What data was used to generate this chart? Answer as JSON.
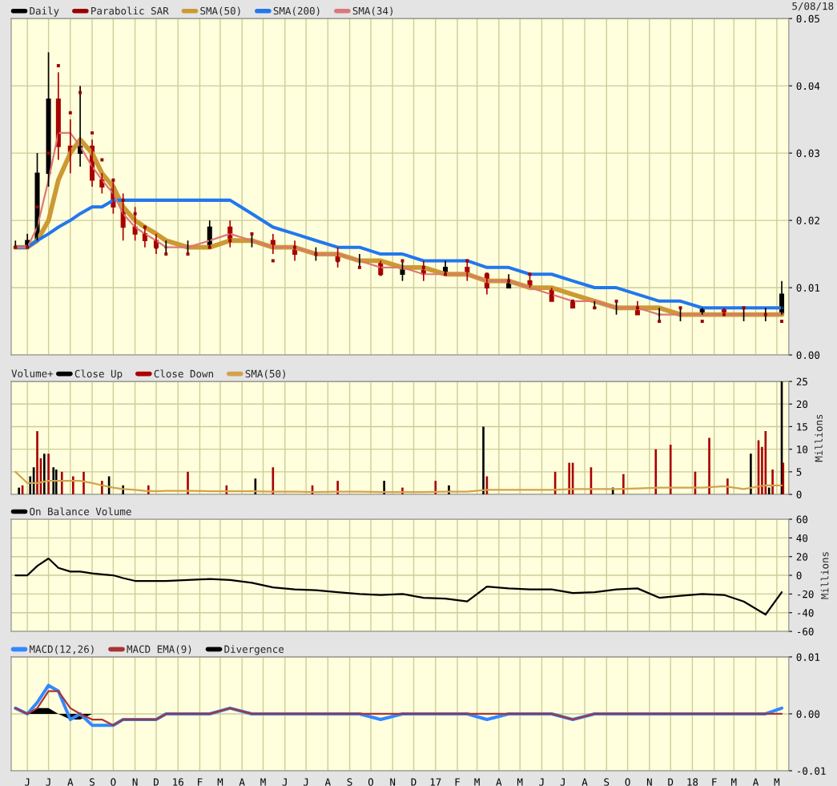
{
  "chart_data": [
    {
      "type": "candlestick",
      "x": [
        "2015-05-15",
        "2015-06-01",
        "2015-06-15",
        "2015-07-01",
        "2015-07-15",
        "2015-08-01",
        "2015-08-15",
        "2015-09-01",
        "2015-09-15",
        "2015-10-01",
        "2015-10-15",
        "2015-11-01",
        "2015-11-15",
        "2015-12-01",
        "2015-12-15",
        "2016-01-15",
        "2016-02-15",
        "2016-03-15",
        "2016-04-15",
        "2016-05-15",
        "2016-06-15",
        "2016-07-15",
        "2016-08-15",
        "2016-09-15",
        "2016-10-15",
        "2016-11-15",
        "2016-12-15",
        "2017-01-15",
        "2017-02-15",
        "2017-03-15",
        "2017-04-15",
        "2017-05-15",
        "2017-06-15",
        "2017-07-15",
        "2017-08-15",
        "2017-09-15",
        "2017-10-15",
        "2017-11-15",
        "2017-12-15",
        "2018-01-15",
        "2018-02-15",
        "2018-03-15",
        "2018-04-15",
        "2018-05-08"
      ],
      "series": [
        {
          "name": "Daily",
          "color": "#000000",
          "colors": [
            "#000000",
            "#000000",
            "#000000",
            "#000000",
            "#aa0000",
            "#aa0000",
            "#000000",
            "#aa0000",
            "#aa0000",
            "#aa0000",
            "#aa0000",
            "#aa0000",
            "#aa0000",
            "#aa0000",
            "#000000",
            "#000000",
            "#000000",
            "#aa0000",
            "#000000",
            "#aa0000",
            "#aa0000",
            "#000000",
            "#aa0000",
            "#000000",
            "#aa0000",
            "#000000",
            "#aa0000",
            "#000000",
            "#aa0000",
            "#aa0000",
            "#000000",
            "#aa0000",
            "#aa0000",
            "#aa0000",
            "#000000",
            "#000000",
            "#aa0000",
            "#000000",
            "#000000",
            "#000000",
            "#aa0000",
            "#000000",
            "#000000",
            "#000000"
          ],
          "ohlc": [
            [
              0.016,
              0.017,
              0.016,
              0.016
            ],
            [
              0.016,
              0.018,
              0.016,
              0.017
            ],
            [
              0.017,
              0.03,
              0.017,
              0.027
            ],
            [
              0.027,
              0.045,
              0.025,
              0.038
            ],
            [
              0.038,
              0.042,
              0.029,
              0.031
            ],
            [
              0.031,
              0.035,
              0.027,
              0.03
            ],
            [
              0.03,
              0.04,
              0.028,
              0.031
            ],
            [
              0.031,
              0.032,
              0.025,
              0.026
            ],
            [
              0.026,
              0.027,
              0.024,
              0.025
            ],
            [
              0.025,
              0.026,
              0.021,
              0.022
            ],
            [
              0.022,
              0.024,
              0.017,
              0.019
            ],
            [
              0.019,
              0.022,
              0.017,
              0.018
            ],
            [
              0.018,
              0.019,
              0.016,
              0.017
            ],
            [
              0.017,
              0.018,
              0.015,
              0.016
            ],
            [
              0.016,
              0.017,
              0.015,
              0.016
            ],
            [
              0.016,
              0.017,
              0.015,
              0.016
            ],
            [
              0.016,
              0.02,
              0.016,
              0.019
            ],
            [
              0.019,
              0.02,
              0.016,
              0.017
            ],
            [
              0.017,
              0.018,
              0.016,
              0.017
            ],
            [
              0.017,
              0.018,
              0.015,
              0.016
            ],
            [
              0.016,
              0.017,
              0.014,
              0.015
            ],
            [
              0.015,
              0.016,
              0.014,
              0.015
            ],
            [
              0.015,
              0.016,
              0.013,
              0.014
            ],
            [
              0.014,
              0.015,
              0.013,
              0.014
            ],
            [
              0.014,
              0.014,
              0.012,
              0.012
            ],
            [
              0.012,
              0.014,
              0.011,
              0.013
            ],
            [
              0.013,
              0.014,
              0.011,
              0.012
            ],
            [
              0.012,
              0.014,
              0.012,
              0.013
            ],
            [
              0.013,
              0.014,
              0.011,
              0.012
            ],
            [
              0.012,
              0.012,
              0.009,
              0.01
            ],
            [
              0.01,
              0.012,
              0.01,
              0.011
            ],
            [
              0.011,
              0.012,
              0.01,
              0.01
            ],
            [
              0.01,
              0.01,
              0.008,
              0.008
            ],
            [
              0.008,
              0.008,
              0.007,
              0.007
            ],
            [
              0.007,
              0.008,
              0.007,
              0.007
            ],
            [
              0.007,
              0.008,
              0.006,
              0.007
            ],
            [
              0.007,
              0.008,
              0.006,
              0.006
            ],
            [
              0.006,
              0.007,
              0.005,
              0.006
            ],
            [
              0.006,
              0.007,
              0.005,
              0.006
            ],
            [
              0.006,
              0.007,
              0.006,
              0.007
            ],
            [
              0.007,
              0.007,
              0.006,
              0.006
            ],
            [
              0.006,
              0.007,
              0.005,
              0.006
            ],
            [
              0.006,
              0.007,
              0.005,
              0.006
            ],
            [
              0.006,
              0.011,
              0.006,
              0.009
            ]
          ]
        },
        {
          "name": "Parabolic SAR",
          "type": "scatter",
          "marker": "square",
          "color": "#990000",
          "values": [
            0.016,
            0.016,
            0.022,
            0.03,
            0.043,
            0.036,
            0.039,
            0.033,
            0.029,
            0.026,
            0.023,
            0.021,
            0.019,
            0.016,
            0.015,
            0.015,
            0.016,
            0.017,
            0.018,
            0.014,
            0.016,
            0.015,
            0.014,
            0.013,
            0.012,
            0.014,
            0.013,
            0.012,
            0.014,
            0.012,
            0.011,
            0.012,
            0.009,
            0.008,
            0.007,
            0.008,
            0.007,
            0.005,
            0.007,
            0.005,
            0.006,
            0.007,
            0.006,
            0.005
          ]
        },
        {
          "name": "SMA(50)",
          "type": "line",
          "color": "#cc9933",
          "values": [
            0.016,
            0.016,
            0.017,
            0.02,
            0.026,
            0.03,
            0.032,
            0.03,
            0.027,
            0.025,
            0.022,
            0.02,
            0.019,
            0.018,
            0.017,
            0.016,
            0.016,
            0.017,
            0.017,
            0.016,
            0.016,
            0.015,
            0.015,
            0.014,
            0.014,
            0.013,
            0.013,
            0.012,
            0.012,
            0.011,
            0.011,
            0.01,
            0.01,
            0.009,
            0.008,
            0.007,
            0.007,
            0.007,
            0.006,
            0.006,
            0.006,
            0.006,
            0.006,
            0.006
          ]
        },
        {
          "name": "SMA(200)",
          "type": "line",
          "color": "#2277ee",
          "values": [
            0.016,
            0.016,
            0.017,
            0.018,
            0.019,
            0.02,
            0.021,
            0.022,
            0.022,
            0.023,
            0.023,
            0.023,
            0.023,
            0.023,
            0.023,
            0.023,
            0.023,
            0.023,
            0.021,
            0.019,
            0.018,
            0.017,
            0.016,
            0.016,
            0.015,
            0.015,
            0.014,
            0.014,
            0.014,
            0.013,
            0.013,
            0.012,
            0.012,
            0.011,
            0.01,
            0.01,
            0.009,
            0.008,
            0.008,
            0.007,
            0.007,
            0.007,
            0.007,
            0.007
          ]
        },
        {
          "name": "SMA(34)",
          "type": "line",
          "color": "#dd7777",
          "values": [
            0.016,
            0.016,
            0.019,
            0.026,
            0.033,
            0.033,
            0.031,
            0.028,
            0.026,
            0.024,
            0.021,
            0.019,
            0.018,
            0.017,
            0.016,
            0.016,
            0.017,
            0.018,
            0.017,
            0.016,
            0.016,
            0.015,
            0.015,
            0.014,
            0.013,
            0.013,
            0.012,
            0.012,
            0.012,
            0.011,
            0.011,
            0.01,
            0.009,
            0.008,
            0.008,
            0.007,
            0.007,
            0.006,
            0.006,
            0.006,
            0.006,
            0.006,
            0.006,
            0.006
          ]
        }
      ],
      "xlim": [
        "2015-05-09",
        "2018-05-18"
      ],
      "xticks": [
        {
          "value": "2015-06-01",
          "label": null
        },
        {
          "value": "2015-07-01",
          "label": null
        },
        {
          "value": "2015-08-01",
          "label": null
        },
        {
          "value": "2015-09-01",
          "label": null
        },
        {
          "value": "2015-10-01",
          "label": null
        },
        {
          "value": "2015-11-01",
          "label": null
        },
        {
          "value": "2015-12-01",
          "label": null
        },
        {
          "value": "2016-01-01",
          "label": null
        },
        {
          "value": "2016-02-01",
          "label": null
        },
        {
          "value": "2016-03-01",
          "label": null
        },
        {
          "value": "2016-04-01",
          "label": null
        },
        {
          "value": "2016-05-01",
          "label": null
        },
        {
          "value": "2016-06-01",
          "label": null
        },
        {
          "value": "2016-07-01",
          "label": null
        },
        {
          "value": "2016-08-01",
          "label": null
        },
        {
          "value": "2016-09-01",
          "label": null
        },
        {
          "value": "2016-10-01",
          "label": null
        },
        {
          "value": "2016-11-01",
          "label": null
        },
        {
          "value": "2016-12-01",
          "label": null
        },
        {
          "value": "2017-01-01",
          "label": null
        },
        {
          "value": "2017-02-01",
          "label": null
        },
        {
          "value": "2017-03-01",
          "label": null
        },
        {
          "value": "2017-04-01",
          "label": null
        },
        {
          "value": "2017-05-01",
          "label": null
        },
        {
          "value": "2017-06-01",
          "label": null
        },
        {
          "value": "2017-07-01",
          "label": null
        },
        {
          "value": "2017-08-01",
          "label": null
        },
        {
          "value": "2017-09-01",
          "label": null
        },
        {
          "value": "2017-10-01",
          "label": null
        },
        {
          "value": "2017-11-01",
          "label": null
        },
        {
          "value": "2017-12-01",
          "label": null
        },
        {
          "value": "2018-01-01",
          "label": null
        },
        {
          "value": "2018-02-01",
          "label": null
        },
        {
          "value": "2018-03-01",
          "label": null
        },
        {
          "value": "2018-04-01",
          "label": null
        },
        {
          "value": "2018-05-01",
          "label": null
        }
      ],
      "ylim": [
        0,
        0.05
      ],
      "yticks": [
        {
          "value": 0,
          "label": "0.00"
        },
        {
          "value": 0.01,
          "label": "0.01"
        },
        {
          "value": 0.02,
          "label": "0.02"
        },
        {
          "value": 0.03,
          "label": "0.03"
        },
        {
          "value": 0.04,
          "label": "0.04"
        },
        {
          "value": 0.05,
          "label": "0.05"
        }
      ],
      "annotations": [
        "5/08/18"
      ],
      "grid": true,
      "legend": "top left",
      "tick_labels": "y"
    },
    {
      "type": "bar",
      "title": "Volume+",
      "ylabel": "Millions",
      "x": [
        "2015-05-15",
        "2015-06-01",
        "2015-06-15",
        "2015-07-01",
        "2015-07-15",
        "2015-08-01",
        "2015-08-15",
        "2015-09-01",
        "2015-09-15",
        "2015-10-01",
        "2015-10-15",
        "2015-11-01",
        "2015-11-15",
        "2015-12-01",
        "2015-12-15",
        "2016-01-15",
        "2016-02-15",
        "2016-03-15",
        "2016-04-15",
        "2016-05-15",
        "2016-06-15",
        "2016-07-15",
        "2016-08-15",
        "2016-09-15",
        "2016-10-15",
        "2016-11-15",
        "2016-12-15",
        "2017-01-15",
        "2017-02-15",
        "2017-03-15",
        "2017-04-15",
        "2017-05-15",
        "2017-06-15",
        "2017-07-15",
        "2017-08-15",
        "2017-09-15",
        "2017-10-15",
        "2017-11-15",
        "2017-12-15",
        "2018-01-15",
        "2018-02-15",
        "2018-03-15",
        "2018-04-15",
        "2018-05-08"
      ],
      "series": [
        {
          "name": "Close Up",
          "color": "#000000",
          "x": [
            "2015-05-20",
            "2015-06-05",
            "2015-06-10",
            "2015-06-25",
            "2015-07-08",
            "2015-07-12",
            "2015-09-25",
            "2015-10-15",
            "2016-04-20",
            "2016-10-20",
            "2017-01-20",
            "2017-03-10",
            "2017-09-10",
            "2018-03-25",
            "2018-04-20",
            "2018-05-08"
          ],
          "values": [
            1.5,
            4,
            6,
            9,
            6,
            5.5,
            4,
            2,
            3.5,
            3,
            2,
            15,
            1.5,
            9,
            1.5,
            25
          ]
        },
        {
          "name": "Close Down",
          "color": "#aa0000",
          "x": [
            "2015-05-25",
            "2015-06-15",
            "2015-06-20",
            "2015-07-01",
            "2015-07-20",
            "2015-08-05",
            "2015-08-20",
            "2015-09-15",
            "2015-11-20",
            "2016-01-15",
            "2016-03-10",
            "2016-05-15",
            "2016-07-10",
            "2016-08-15",
            "2016-11-15",
            "2017-01-01",
            "2017-03-15",
            "2017-06-20",
            "2017-07-10",
            "2017-07-15",
            "2017-08-10",
            "2017-09-25",
            "2017-11-10",
            "2017-12-01",
            "2018-01-05",
            "2018-01-25",
            "2018-02-20",
            "2018-04-05",
            "2018-04-10",
            "2018-04-15",
            "2018-04-25",
            "2018-05-10"
          ],
          "values": [
            2,
            14,
            8,
            9,
            5,
            4,
            5,
            3,
            2,
            5,
            2,
            6,
            2,
            3,
            1.5,
            3,
            4,
            5,
            7,
            7,
            6,
            4.5,
            10,
            11,
            5,
            12.5,
            3.5,
            12,
            10.5,
            14,
            5.5,
            7
          ]
        },
        {
          "name": "SMA(50)",
          "type": "line",
          "color": "#d4a24c",
          "values": [
            5,
            2.5,
            2.5,
            3,
            3,
            3,
            3,
            2.5,
            2,
            1.5,
            1.2,
            1,
            0.8,
            0.7,
            0.8,
            0.8,
            0.7,
            0.7,
            0.7,
            0.6,
            0.6,
            0.5,
            0.6,
            0.6,
            0.5,
            0.5,
            0.5,
            0.6,
            0.6,
            1,
            1,
            1,
            1,
            1.2,
            1.2,
            1.2,
            1.3,
            1.5,
            1.5,
            1.5,
            1.8,
            1.2,
            2,
            2
          ]
        }
      ],
      "xlim": [
        "2015-05-09",
        "2018-05-18"
      ],
      "xticks": [
        {
          "value": "2015-06-01",
          "label": null
        },
        {
          "value": "2015-07-01",
          "label": null
        },
        {
          "value": "2015-08-01",
          "label": null
        },
        {
          "value": "2015-09-01",
          "label": null
        },
        {
          "value": "2015-10-01",
          "label": null
        },
        {
          "value": "2015-11-01",
          "label": null
        },
        {
          "value": "2015-12-01",
          "label": null
        },
        {
          "value": "2016-01-01",
          "label": null
        },
        {
          "value": "2016-02-01",
          "label": null
        },
        {
          "value": "2016-03-01",
          "label": null
        },
        {
          "value": "2016-04-01",
          "label": null
        },
        {
          "value": "2016-05-01",
          "label": null
        },
        {
          "value": "2016-06-01",
          "label": null
        },
        {
          "value": "2016-07-01",
          "label": null
        },
        {
          "value": "2016-08-01",
          "label": null
        },
        {
          "value": "2016-09-01",
          "label": null
        },
        {
          "value": "2016-10-01",
          "label": null
        },
        {
          "value": "2016-11-01",
          "label": null
        },
        {
          "value": "2016-12-01",
          "label": null
        },
        {
          "value": "2017-01-01",
          "label": null
        },
        {
          "value": "2017-02-01",
          "label": null
        },
        {
          "value": "2017-03-01",
          "label": null
        },
        {
          "value": "2017-04-01",
          "label": null
        },
        {
          "value": "2017-05-01",
          "label": null
        },
        {
          "value": "2017-06-01",
          "label": null
        },
        {
          "value": "2017-07-01",
          "label": null
        },
        {
          "value": "2017-08-01",
          "label": null
        },
        {
          "value": "2017-09-01",
          "label": null
        },
        {
          "value": "2017-10-01",
          "label": null
        },
        {
          "value": "2017-11-01",
          "label": null
        },
        {
          "value": "2017-12-01",
          "label": null
        },
        {
          "value": "2018-01-01",
          "label": null
        },
        {
          "value": "2018-02-01",
          "label": null
        },
        {
          "value": "2018-03-01",
          "label": null
        },
        {
          "value": "2018-04-01",
          "label": null
        },
        {
          "value": "2018-05-01",
          "label": null
        }
      ],
      "ylim": [
        0,
        25
      ],
      "yticks": [
        0,
        5,
        10,
        15,
        20,
        25
      ],
      "grid": true,
      "legend": "top left",
      "tick_labels": "y"
    },
    {
      "type": "line",
      "ylabel": "Millions",
      "x": [
        "2015-05-15",
        "2015-06-01",
        "2015-06-15",
        "2015-07-01",
        "2015-07-15",
        "2015-08-01",
        "2015-08-15",
        "2015-09-01",
        "2015-09-15",
        "2015-10-01",
        "2015-10-15",
        "2015-11-01",
        "2015-11-15",
        "2015-12-01",
        "2015-12-15",
        "2016-01-15",
        "2016-02-15",
        "2016-03-15",
        "2016-04-15",
        "2016-05-15",
        "2016-06-15",
        "2016-07-15",
        "2016-08-15",
        "2016-09-15",
        "2016-10-15",
        "2016-11-15",
        "2016-12-15",
        "2017-01-15",
        "2017-02-15",
        "2017-03-15",
        "2017-04-15",
        "2017-05-15",
        "2017-06-15",
        "2017-07-15",
        "2017-08-15",
        "2017-09-15",
        "2017-10-15",
        "2017-11-15",
        "2017-12-15",
        "2018-01-15",
        "2018-02-15",
        "2018-03-15",
        "2018-04-15",
        "2018-05-08"
      ],
      "series": [
        {
          "name": "On Balance Volume",
          "color": "#000000",
          "values": [
            0,
            0,
            10,
            18,
            8,
            4,
            4,
            2,
            1,
            0,
            -3,
            -6,
            -6,
            -6,
            -6,
            -5,
            -4,
            -5,
            -8,
            -13,
            -15,
            -16,
            -18,
            -20,
            -21,
            -20,
            -24,
            -25,
            -28,
            -12,
            -14,
            -15,
            -15,
            -19,
            -18,
            -15,
            -14,
            -24,
            -22,
            -20,
            -21,
            -28,
            -42,
            -18
          ]
        }
      ],
      "xlim": [
        "2015-05-09",
        "2018-05-18"
      ],
      "xticks": [
        {
          "value": "2015-06-01",
          "label": null
        },
        {
          "value": "2015-07-01",
          "label": null
        },
        {
          "value": "2015-08-01",
          "label": null
        },
        {
          "value": "2015-09-01",
          "label": null
        },
        {
          "value": "2015-10-01",
          "label": null
        },
        {
          "value": "2015-11-01",
          "label": null
        },
        {
          "value": "2015-12-01",
          "label": null
        },
        {
          "value": "2016-01-01",
          "label": null
        },
        {
          "value": "2016-02-01",
          "label": null
        },
        {
          "value": "2016-03-01",
          "label": null
        },
        {
          "value": "2016-04-01",
          "label": null
        },
        {
          "value": "2016-05-01",
          "label": null
        },
        {
          "value": "2016-06-01",
          "label": null
        },
        {
          "value": "2016-07-01",
          "label": null
        },
        {
          "value": "2016-08-01",
          "label": null
        },
        {
          "value": "2016-09-01",
          "label": null
        },
        {
          "value": "2016-10-01",
          "label": null
        },
        {
          "value": "2016-11-01",
          "label": null
        },
        {
          "value": "2016-12-01",
          "label": null
        },
        {
          "value": "2017-01-01",
          "label": null
        },
        {
          "value": "2017-02-01",
          "label": null
        },
        {
          "value": "2017-03-01",
          "label": null
        },
        {
          "value": "2017-04-01",
          "label": null
        },
        {
          "value": "2017-05-01",
          "label": null
        },
        {
          "value": "2017-06-01",
          "label": null
        },
        {
          "value": "2017-07-01",
          "label": null
        },
        {
          "value": "2017-08-01",
          "label": null
        },
        {
          "value": "2017-09-01",
          "label": null
        },
        {
          "value": "2017-10-01",
          "label": null
        },
        {
          "value": "2017-11-01",
          "label": null
        },
        {
          "value": "2017-12-01",
          "label": null
        },
        {
          "value": "2018-01-01",
          "label": null
        },
        {
          "value": "2018-02-01",
          "label": null
        },
        {
          "value": "2018-03-01",
          "label": null
        },
        {
          "value": "2018-04-01",
          "label": null
        },
        {
          "value": "2018-05-01",
          "label": null
        }
      ],
      "ylim": [
        -60,
        60
      ],
      "yticks": [
        -60,
        -40,
        -20,
        0,
        20,
        40,
        60
      ],
      "grid": true,
      "legend": "top left",
      "tick_labels": "y"
    },
    {
      "type": "line",
      "x": [
        "2015-05-15",
        "2015-06-01",
        "2015-06-15",
        "2015-07-01",
        "2015-07-15",
        "2015-08-01",
        "2015-08-15",
        "2015-09-01",
        "2015-09-15",
        "2015-10-01",
        "2015-10-15",
        "2015-11-01",
        "2015-11-15",
        "2015-12-01",
        "2015-12-15",
        "2016-01-15",
        "2016-02-15",
        "2016-03-15",
        "2016-04-15",
        "2016-05-15",
        "2016-06-15",
        "2016-07-15",
        "2016-08-15",
        "2016-09-15",
        "2016-10-15",
        "2016-11-15",
        "2016-12-15",
        "2017-01-15",
        "2017-02-15",
        "2017-03-15",
        "2017-04-15",
        "2017-05-15",
        "2017-06-15",
        "2017-07-15",
        "2017-08-15",
        "2017-09-15",
        "2017-10-15",
        "2017-11-15",
        "2017-12-15",
        "2018-01-15",
        "2018-02-15",
        "2018-03-15",
        "2018-04-15",
        "2018-05-08"
      ],
      "series": [
        {
          "name": "MACD(12,26)",
          "color": "#3388ff",
          "values": [
            0.001,
            0.0,
            0.002,
            0.005,
            0.004,
            -0.001,
            0.0,
            -0.002,
            -0.002,
            -0.002,
            -0.001,
            -0.001,
            -0.001,
            -0.001,
            0.0,
            0.0,
            0.0,
            0.001,
            0.0,
            0.0,
            0.0,
            0.0,
            0.0,
            0.0,
            -0.001,
            0.0,
            0.0,
            0.0,
            0.0,
            -0.001,
            0.0,
            0.0,
            0.0,
            -0.001,
            0.0,
            0.0,
            0.0,
            0.0,
            0.0,
            0.0,
            0.0,
            0.0,
            0.0,
            0.001
          ]
        },
        {
          "name": "MACD EMA(9)",
          "color": "#aa3333",
          "values": [
            0.001,
            0.0,
            0.001,
            0.004,
            0.004,
            0.001,
            0.0,
            -0.001,
            -0.001,
            -0.002,
            -0.001,
            -0.001,
            -0.001,
            -0.001,
            0.0,
            0.0,
            0.0,
            0.001,
            0.0,
            0.0,
            0.0,
            0.0,
            0.0,
            0.0,
            0.0,
            0.0,
            0.0,
            0.0,
            0.0,
            0.0,
            0.0,
            0.0,
            0.0,
            -0.001,
            0.0,
            0.0,
            0.0,
            0.0,
            0.0,
            0.0,
            0.0,
            0.0,
            0.0,
            0.0
          ]
        },
        {
          "name": "Divergence",
          "type": "area",
          "color": "#000000",
          "values": [
            0.0,
            0.0,
            0.001,
            0.001,
            0.0,
            -0.001,
            -0.001,
            0.0,
            0.0,
            0.0,
            0.0,
            0.0,
            0.0,
            0.0,
            0.0,
            0.0,
            0.0,
            0.0,
            0.0,
            0.0,
            0.0,
            0.0,
            0.0,
            0.0,
            0.0,
            0.0,
            0.0,
            0.0,
            0.0,
            0.0,
            0.0,
            0.0,
            0.0,
            0.0,
            0.0,
            0.0,
            0.0,
            0.0,
            0.0,
            0.0,
            0.0,
            0.0,
            0.0,
            0.0
          ]
        }
      ],
      "xlim": [
        "2015-05-09",
        "2018-05-18"
      ],
      "xticks": [
        {
          "value": "2015-06-01",
          "label": "J"
        },
        {
          "value": "2015-07-01",
          "label": "J"
        },
        {
          "value": "2015-08-01",
          "label": "A"
        },
        {
          "value": "2015-09-01",
          "label": "S"
        },
        {
          "value": "2015-10-01",
          "label": "O"
        },
        {
          "value": "2015-11-01",
          "label": "N"
        },
        {
          "value": "2015-12-01",
          "label": "D"
        },
        {
          "value": "2016-01-01",
          "label": "16"
        },
        {
          "value": "2016-02-01",
          "label": "F"
        },
        {
          "value": "2016-03-01",
          "label": "M"
        },
        {
          "value": "2016-04-01",
          "label": "A"
        },
        {
          "value": "2016-05-01",
          "label": "M"
        },
        {
          "value": "2016-06-01",
          "label": "J"
        },
        {
          "value": "2016-07-01",
          "label": "J"
        },
        {
          "value": "2016-08-01",
          "label": "A"
        },
        {
          "value": "2016-09-01",
          "label": "S"
        },
        {
          "value": "2016-10-01",
          "label": "O"
        },
        {
          "value": "2016-11-01",
          "label": "N"
        },
        {
          "value": "2016-12-01",
          "label": "D"
        },
        {
          "value": "2017-01-01",
          "label": "17"
        },
        {
          "value": "2017-02-01",
          "label": "F"
        },
        {
          "value": "2017-03-01",
          "label": "M"
        },
        {
          "value": "2017-04-01",
          "label": "A"
        },
        {
          "value": "2017-05-01",
          "label": "M"
        },
        {
          "value": "2017-06-01",
          "label": "J"
        },
        {
          "value": "2017-07-01",
          "label": "J"
        },
        {
          "value": "2017-08-01",
          "label": "A"
        },
        {
          "value": "2017-09-01",
          "label": "S"
        },
        {
          "value": "2017-10-01",
          "label": "O"
        },
        {
          "value": "2017-11-01",
          "label": "N"
        },
        {
          "value": "2017-12-01",
          "label": "D"
        },
        {
          "value": "2018-01-01",
          "label": "18"
        },
        {
          "value": "2018-02-01",
          "label": "F"
        },
        {
          "value": "2018-03-01",
          "label": "M"
        },
        {
          "value": "2018-04-01",
          "label": "A"
        },
        {
          "value": "2018-05-01",
          "label": "M"
        }
      ],
      "ylim": [
        -0.01,
        0.01
      ],
      "yticks": [
        {
          "value": -0.01,
          "label": "-0.01"
        },
        {
          "value": 0,
          "label": "0.00"
        },
        {
          "value": 0.01,
          "label": "0.01"
        }
      ],
      "grid": true,
      "legend": "top left"
    }
  ]
}
